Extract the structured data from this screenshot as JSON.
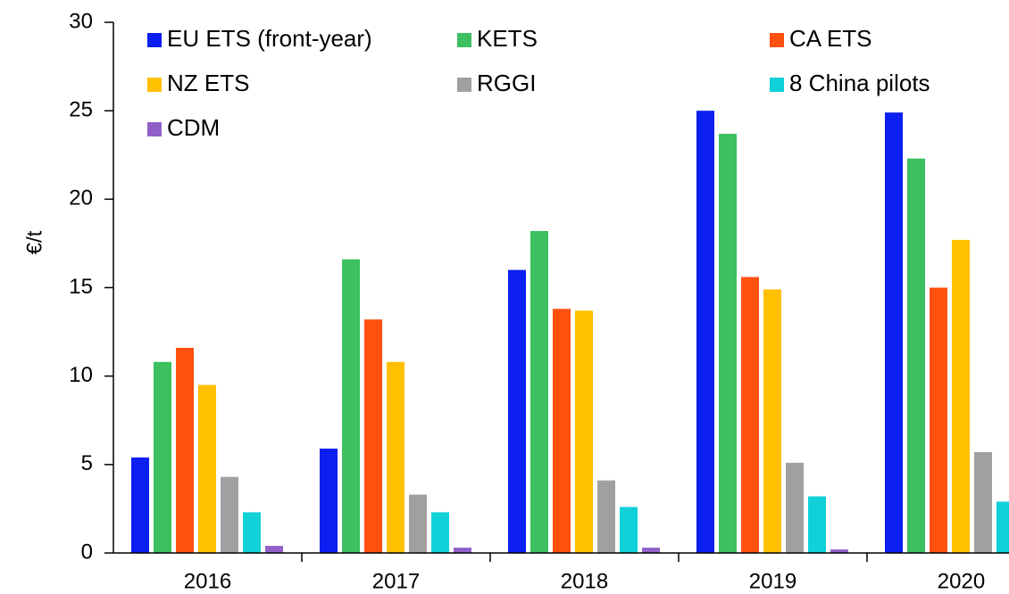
{
  "chart_data": {
    "type": "bar",
    "y_label": "€/t",
    "categories": [
      "2016",
      "2017",
      "2018",
      "2019",
      "2020"
    ],
    "series": [
      {
        "name": "EU ETS (front-year)",
        "color": "#0a1ff0",
        "values": [
          5.4,
          5.9,
          16.0,
          25.0,
          24.9
        ]
      },
      {
        "name": "KETS",
        "color": "#3cc060",
        "values": [
          10.8,
          16.6,
          18.2,
          23.7,
          22.3
        ]
      },
      {
        "name": "CA ETS",
        "color": "#ff5010",
        "values": [
          11.6,
          13.2,
          13.8,
          15.6,
          15.0
        ]
      },
      {
        "name": "NZ ETS",
        "color": "#ffc000",
        "values": [
          9.5,
          10.8,
          13.7,
          14.9,
          17.7
        ]
      },
      {
        "name": "RGGI",
        "color": "#a0a0a0",
        "values": [
          4.3,
          3.3,
          4.1,
          5.1,
          5.7
        ]
      },
      {
        "name": "8 China pilots",
        "color": "#10d0d8",
        "values": [
          2.3,
          2.3,
          2.6,
          3.2,
          2.9
        ]
      },
      {
        "name": "CDM",
        "color": "#9060c8",
        "values": [
          0.4,
          0.3,
          0.3,
          0.2,
          null
        ]
      }
    ],
    "ylim": [
      0,
      30
    ],
    "yticks": [
      0,
      5,
      10,
      15,
      20,
      25,
      30
    ],
    "legend": "top"
  }
}
